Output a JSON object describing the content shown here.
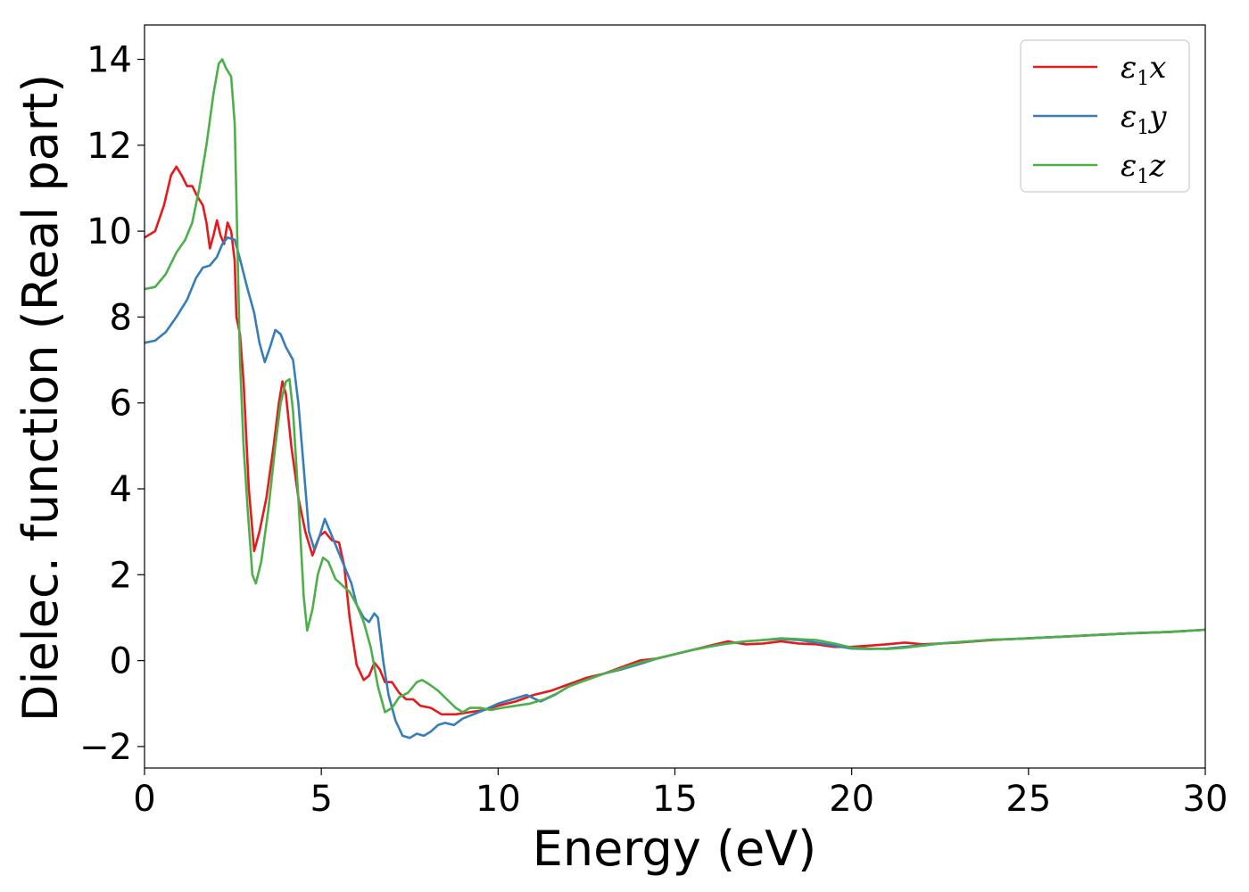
{
  "chart_data": {
    "type": "line",
    "title": "",
    "xlabel": "Energy (eV)",
    "ylabel": "Dielec. function (Real part)",
    "xlim": [
      0,
      30
    ],
    "ylim": [
      -2.5,
      14.8
    ],
    "xticks": [
      0,
      5,
      10,
      15,
      20,
      25,
      30
    ],
    "yticks": [
      -2,
      0,
      2,
      4,
      6,
      8,
      10,
      12,
      14
    ],
    "xtick_labels": [
      "0",
      "5",
      "10",
      "15",
      "20",
      "25",
      "30"
    ],
    "ytick_labels": [
      "−2",
      "0",
      "2",
      "4",
      "6",
      "8",
      "10",
      "12",
      "14"
    ],
    "grid": false,
    "legend_position": "top-right",
    "series": [
      {
        "name": "ε1x",
        "legend_main": "ε",
        "legend_sub": "1",
        "legend_var": "x",
        "color": "#e41a1c",
        "points": [
          [
            0,
            9.85
          ],
          [
            0.3,
            10.0
          ],
          [
            0.55,
            10.6
          ],
          [
            0.75,
            11.3
          ],
          [
            0.9,
            11.5
          ],
          [
            1.05,
            11.3
          ],
          [
            1.2,
            11.05
          ],
          [
            1.35,
            11.05
          ],
          [
            1.5,
            10.8
          ],
          [
            1.65,
            10.6
          ],
          [
            1.75,
            10.2
          ],
          [
            1.85,
            9.6
          ],
          [
            1.95,
            9.9
          ],
          [
            2.05,
            10.25
          ],
          [
            2.15,
            9.9
          ],
          [
            2.25,
            9.7
          ],
          [
            2.35,
            10.2
          ],
          [
            2.45,
            10.0
          ],
          [
            2.55,
            9.3
          ],
          [
            2.6,
            8.0
          ],
          [
            2.7,
            7.6
          ],
          [
            2.8,
            6.5
          ],
          [
            2.95,
            4.0
          ],
          [
            3.1,
            2.55
          ],
          [
            3.25,
            3.0
          ],
          [
            3.45,
            3.8
          ],
          [
            3.65,
            5.0
          ],
          [
            3.8,
            6.0
          ],
          [
            3.9,
            6.5
          ],
          [
            4.0,
            6.2
          ],
          [
            4.15,
            5.0
          ],
          [
            4.35,
            3.8
          ],
          [
            4.55,
            3.0
          ],
          [
            4.75,
            2.45
          ],
          [
            4.95,
            2.9
          ],
          [
            5.1,
            3.0
          ],
          [
            5.3,
            2.8
          ],
          [
            5.5,
            2.75
          ],
          [
            5.65,
            2.2
          ],
          [
            5.8,
            1.0
          ],
          [
            6.0,
            -0.1
          ],
          [
            6.2,
            -0.45
          ],
          [
            6.35,
            -0.35
          ],
          [
            6.5,
            -0.05
          ],
          [
            6.65,
            -0.2
          ],
          [
            6.8,
            -0.5
          ],
          [
            7.0,
            -0.5
          ],
          [
            7.2,
            -0.75
          ],
          [
            7.4,
            -0.9
          ],
          [
            7.6,
            -0.9
          ],
          [
            7.8,
            -1.05
          ],
          [
            8.1,
            -1.1
          ],
          [
            8.4,
            -1.25
          ],
          [
            8.8,
            -1.25
          ],
          [
            9.2,
            -1.2
          ],
          [
            9.6,
            -1.15
          ],
          [
            10.0,
            -1.05
          ],
          [
            10.5,
            -0.95
          ],
          [
            11.0,
            -0.8
          ],
          [
            11.5,
            -0.7
          ],
          [
            12.0,
            -0.55
          ],
          [
            12.5,
            -0.4
          ],
          [
            13.0,
            -0.3
          ],
          [
            13.5,
            -0.15
          ],
          [
            14.0,
            0.0
          ],
          [
            14.5,
            0.05
          ],
          [
            15.0,
            0.15
          ],
          [
            15.5,
            0.25
          ],
          [
            16.0,
            0.35
          ],
          [
            16.5,
            0.45
          ],
          [
            17.0,
            0.38
          ],
          [
            17.5,
            0.4
          ],
          [
            18.0,
            0.45
          ],
          [
            18.5,
            0.4
          ],
          [
            19.0,
            0.38
          ],
          [
            19.5,
            0.32
          ],
          [
            20.0,
            0.32
          ],
          [
            20.5,
            0.35
          ],
          [
            21.0,
            0.38
          ],
          [
            21.5,
            0.42
          ],
          [
            22.0,
            0.38
          ],
          [
            22.5,
            0.4
          ],
          [
            23.0,
            0.42
          ],
          [
            23.5,
            0.45
          ],
          [
            24.0,
            0.48
          ],
          [
            24.5,
            0.5
          ],
          [
            25.0,
            0.52
          ],
          [
            26.0,
            0.56
          ],
          [
            27.0,
            0.6
          ],
          [
            28.0,
            0.64
          ],
          [
            29.0,
            0.67
          ],
          [
            30.0,
            0.72
          ]
        ]
      },
      {
        "name": "ε1y",
        "legend_main": "ε",
        "legend_sub": "1",
        "legend_var": "y",
        "color": "#377eb8",
        "points": [
          [
            0,
            7.4
          ],
          [
            0.3,
            7.45
          ],
          [
            0.6,
            7.65
          ],
          [
            0.9,
            8.0
          ],
          [
            1.2,
            8.4
          ],
          [
            1.45,
            8.9
          ],
          [
            1.65,
            9.15
          ],
          [
            1.85,
            9.2
          ],
          [
            2.05,
            9.4
          ],
          [
            2.2,
            9.7
          ],
          [
            2.35,
            9.85
          ],
          [
            2.55,
            9.8
          ],
          [
            2.7,
            9.35
          ],
          [
            2.9,
            8.7
          ],
          [
            3.1,
            8.1
          ],
          [
            3.25,
            7.4
          ],
          [
            3.4,
            6.95
          ],
          [
            3.55,
            7.3
          ],
          [
            3.7,
            7.7
          ],
          [
            3.85,
            7.6
          ],
          [
            4.0,
            7.3
          ],
          [
            4.2,
            7.0
          ],
          [
            4.35,
            6.0
          ],
          [
            4.5,
            4.5
          ],
          [
            4.65,
            3.0
          ],
          [
            4.8,
            2.6
          ],
          [
            4.95,
            2.9
          ],
          [
            5.1,
            3.3
          ],
          [
            5.25,
            3.0
          ],
          [
            5.45,
            2.6
          ],
          [
            5.65,
            2.2
          ],
          [
            5.85,
            1.8
          ],
          [
            6.0,
            1.3
          ],
          [
            6.2,
            1.0
          ],
          [
            6.35,
            0.9
          ],
          [
            6.5,
            1.1
          ],
          [
            6.6,
            1.0
          ],
          [
            6.75,
            0.0
          ],
          [
            6.9,
            -0.8
          ],
          [
            7.1,
            -1.4
          ],
          [
            7.3,
            -1.75
          ],
          [
            7.5,
            -1.8
          ],
          [
            7.7,
            -1.7
          ],
          [
            7.9,
            -1.75
          ],
          [
            8.1,
            -1.65
          ],
          [
            8.3,
            -1.5
          ],
          [
            8.5,
            -1.45
          ],
          [
            8.75,
            -1.5
          ],
          [
            9.0,
            -1.35
          ],
          [
            9.3,
            -1.25
          ],
          [
            9.6,
            -1.15
          ],
          [
            10.0,
            -1.0
          ],
          [
            10.4,
            -0.9
          ],
          [
            10.8,
            -0.8
          ],
          [
            11.2,
            -0.95
          ],
          [
            11.6,
            -0.8
          ],
          [
            12.0,
            -0.6
          ],
          [
            12.5,
            -0.45
          ],
          [
            13.0,
            -0.3
          ],
          [
            13.5,
            -0.2
          ],
          [
            14.0,
            -0.08
          ],
          [
            14.5,
            0.05
          ],
          [
            15.0,
            0.15
          ],
          [
            15.5,
            0.25
          ],
          [
            16.0,
            0.33
          ],
          [
            16.5,
            0.4
          ],
          [
            17.0,
            0.45
          ],
          [
            17.5,
            0.48
          ],
          [
            18.0,
            0.5
          ],
          [
            18.5,
            0.48
          ],
          [
            19.0,
            0.42
          ],
          [
            19.5,
            0.35
          ],
          [
            20.0,
            0.28
          ],
          [
            20.5,
            0.27
          ],
          [
            21.0,
            0.28
          ],
          [
            21.5,
            0.32
          ],
          [
            22.0,
            0.36
          ],
          [
            22.5,
            0.4
          ],
          [
            23.0,
            0.43
          ],
          [
            23.5,
            0.46
          ],
          [
            24.0,
            0.49
          ],
          [
            24.5,
            0.5
          ],
          [
            25.0,
            0.52
          ],
          [
            26.0,
            0.56
          ],
          [
            27.0,
            0.6
          ],
          [
            28.0,
            0.64
          ],
          [
            29.0,
            0.67
          ],
          [
            30.0,
            0.72
          ]
        ]
      },
      {
        "name": "ε1z",
        "legend_main": "ε",
        "legend_sub": "1",
        "legend_var": "z",
        "color": "#4daf4a",
        "points": [
          [
            0,
            8.65
          ],
          [
            0.3,
            8.7
          ],
          [
            0.6,
            9.0
          ],
          [
            0.9,
            9.5
          ],
          [
            1.15,
            9.8
          ],
          [
            1.35,
            10.2
          ],
          [
            1.55,
            11.0
          ],
          [
            1.75,
            12.0
          ],
          [
            1.95,
            13.2
          ],
          [
            2.1,
            13.9
          ],
          [
            2.2,
            14.0
          ],
          [
            2.3,
            13.8
          ],
          [
            2.45,
            13.6
          ],
          [
            2.55,
            12.5
          ],
          [
            2.62,
            10.0
          ],
          [
            2.7,
            7.0
          ],
          [
            2.8,
            5.0
          ],
          [
            2.92,
            3.5
          ],
          [
            3.05,
            2.0
          ],
          [
            3.15,
            1.8
          ],
          [
            3.3,
            2.3
          ],
          [
            3.5,
            3.5
          ],
          [
            3.7,
            5.0
          ],
          [
            3.85,
            6.0
          ],
          [
            4.0,
            6.5
          ],
          [
            4.1,
            6.55
          ],
          [
            4.2,
            5.8
          ],
          [
            4.35,
            3.8
          ],
          [
            4.5,
            1.5
          ],
          [
            4.6,
            0.7
          ],
          [
            4.75,
            1.2
          ],
          [
            4.9,
            2.0
          ],
          [
            5.05,
            2.4
          ],
          [
            5.2,
            2.3
          ],
          [
            5.4,
            1.9
          ],
          [
            5.6,
            1.75
          ],
          [
            5.8,
            1.6
          ],
          [
            6.0,
            1.3
          ],
          [
            6.2,
            0.9
          ],
          [
            6.4,
            0.3
          ],
          [
            6.6,
            -0.6
          ],
          [
            6.8,
            -1.2
          ],
          [
            7.0,
            -1.1
          ],
          [
            7.2,
            -0.85
          ],
          [
            7.45,
            -0.75
          ],
          [
            7.7,
            -0.5
          ],
          [
            7.85,
            -0.45
          ],
          [
            8.05,
            -0.55
          ],
          [
            8.3,
            -0.7
          ],
          [
            8.55,
            -0.9
          ],
          [
            8.8,
            -1.1
          ],
          [
            9.0,
            -1.2
          ],
          [
            9.2,
            -1.1
          ],
          [
            9.5,
            -1.1
          ],
          [
            9.8,
            -1.15
          ],
          [
            10.1,
            -1.1
          ],
          [
            10.5,
            -1.05
          ],
          [
            10.9,
            -1.0
          ],
          [
            11.3,
            -0.9
          ],
          [
            11.7,
            -0.75
          ],
          [
            12.0,
            -0.6
          ],
          [
            12.5,
            -0.45
          ],
          [
            13.0,
            -0.3
          ],
          [
            13.5,
            -0.18
          ],
          [
            14.0,
            -0.05
          ],
          [
            14.5,
            0.05
          ],
          [
            15.0,
            0.15
          ],
          [
            15.5,
            0.25
          ],
          [
            16.0,
            0.33
          ],
          [
            16.5,
            0.4
          ],
          [
            17.0,
            0.45
          ],
          [
            17.5,
            0.48
          ],
          [
            18.0,
            0.52
          ],
          [
            18.5,
            0.5
          ],
          [
            19.0,
            0.48
          ],
          [
            19.5,
            0.4
          ],
          [
            20.0,
            0.3
          ],
          [
            20.5,
            0.28
          ],
          [
            21.0,
            0.27
          ],
          [
            21.5,
            0.3
          ],
          [
            22.0,
            0.35
          ],
          [
            22.5,
            0.4
          ],
          [
            23.0,
            0.43
          ],
          [
            23.5,
            0.46
          ],
          [
            24.0,
            0.49
          ],
          [
            24.5,
            0.5
          ],
          [
            25.0,
            0.52
          ],
          [
            26.0,
            0.56
          ],
          [
            27.0,
            0.6
          ],
          [
            28.0,
            0.64
          ],
          [
            29.0,
            0.67
          ],
          [
            30.0,
            0.72
          ]
        ]
      }
    ]
  }
}
